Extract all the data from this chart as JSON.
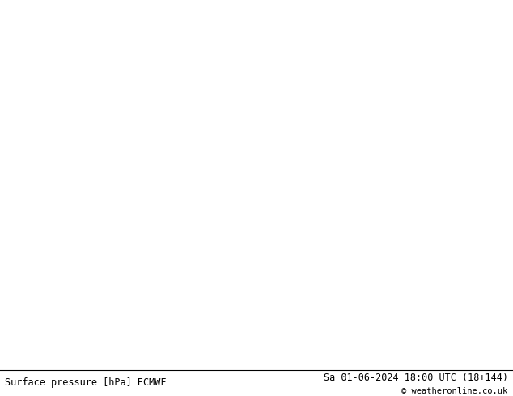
{
  "title_left": "Surface pressure [hPa] ECMWF",
  "title_right": "Sa 01-06-2024 18:00 UTC (18+144)",
  "copyright": "© weatheronline.co.uk",
  "figsize": [
    6.34,
    4.9
  ],
  "dpi": 100,
  "bg_land_color": "#b5d97a",
  "bg_sea_color": "#d0d0d0",
  "bg_ocean_color": "#d0d0d0",
  "red_color": "#cc0000",
  "black_color": "#000000",
  "blue_color": "#0055cc",
  "coastline_color": "#888888",
  "border_color": "#888888",
  "label_fontsize": 7,
  "footer_fontsize": 8.5,
  "footer_fontsize_small": 7.5,
  "lon_min": -13,
  "lon_max": 32,
  "lat_min": 42,
  "lat_max": 66
}
